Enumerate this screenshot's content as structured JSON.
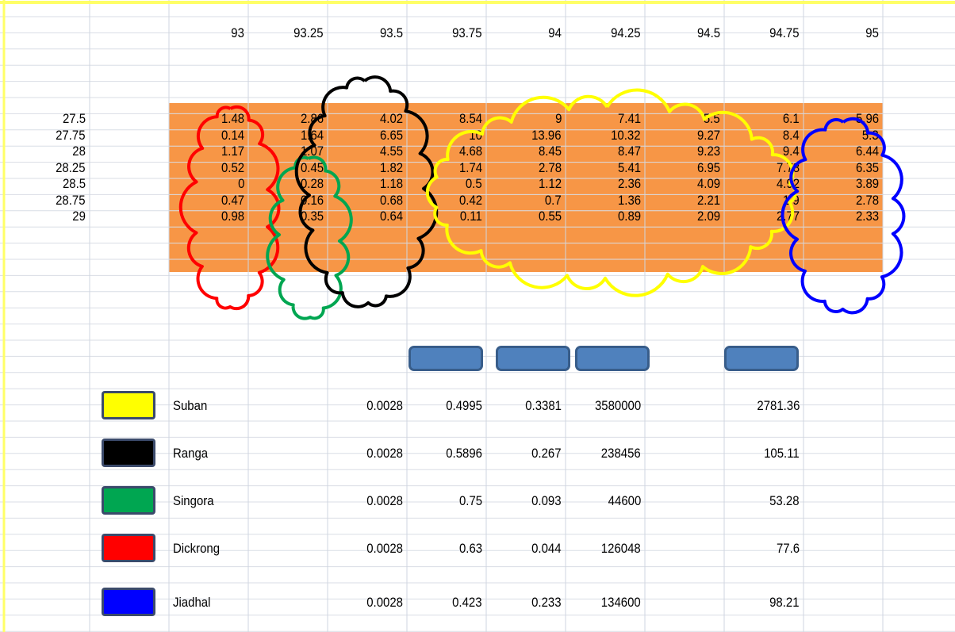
{
  "header_row": [
    "93",
    "93.25",
    "93.5",
    "93.75",
    "94",
    "94.25",
    "94.5",
    "94.75",
    "95"
  ],
  "rows": [
    {
      "label": "27.5",
      "cells": [
        "1.48",
        "2.86",
        "4.02",
        "8.54",
        "9",
        "7.41",
        "5.5",
        "6.1",
        "5.96"
      ]
    },
    {
      "label": "27.75",
      "cells": [
        "0.14",
        "1.64",
        "6.65",
        "10",
        "13.96",
        "10.32",
        "9.27",
        "8.4",
        "5.3"
      ]
    },
    {
      "label": "28",
      "cells": [
        "1.17",
        "1.07",
        "4.55",
        "4.68",
        "8.45",
        "8.47",
        "9.23",
        "9.4",
        "6.44"
      ]
    },
    {
      "label": "28.25",
      "cells": [
        "0.52",
        "0.45",
        "1.82",
        "1.74",
        "2.78",
        "5.41",
        "6.95",
        "7.78",
        "6.35"
      ]
    },
    {
      "label": "28.5",
      "cells": [
        "0",
        "0.28",
        "1.18",
        "0.5",
        "1.12",
        "2.36",
        "4.09",
        "4.92",
        "3.89"
      ]
    },
    {
      "label": "28.75",
      "cells": [
        "0.47",
        "0.16",
        "0.68",
        "0.42",
        "0.7",
        "1.36",
        "2.21",
        "1.9",
        "2.78"
      ]
    },
    {
      "label": "29",
      "cells": [
        "0.98",
        "0.35",
        "0.64",
        "0.11",
        "0.55",
        "0.89",
        "2.09",
        "2.77",
        "2.33"
      ]
    }
  ],
  "legend": [
    {
      "name": "Suban",
      "color": "#ffff00",
      "values": [
        "0.0028",
        "0.4995",
        "0.3381",
        "3580000",
        "2781.36"
      ]
    },
    {
      "name": "Ranga",
      "color": "#000000",
      "values": [
        "0.0028",
        "0.5896",
        "0.267",
        "238456",
        "105.11"
      ]
    },
    {
      "name": "Singora",
      "color": "#00a651",
      "values": [
        "0.0028",
        "0.75",
        "0.093",
        "44600",
        "53.28"
      ]
    },
    {
      "name": "Dickrong",
      "color": "#ff0000",
      "values": [
        "0.0028",
        "0.63",
        "0.044",
        "126048",
        "77.6"
      ]
    },
    {
      "name": "Jiadhal",
      "color": "#0000ff",
      "values": [
        "0.0028",
        "0.423",
        "0.233",
        "134600",
        "98.21"
      ]
    }
  ]
}
